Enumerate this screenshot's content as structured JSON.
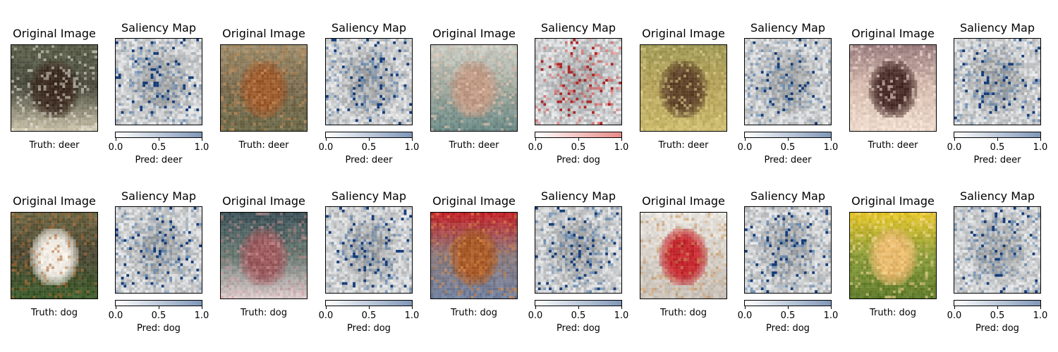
{
  "panels": [
    {
      "row": 0,
      "col": 0,
      "kind": "original",
      "title": "Original Image",
      "caption": "Truth: deer",
      "palette": {
        "base": "#4a4a3c",
        "top": "#5a5f4a",
        "bottom": "#c7c0a8",
        "subject": "#3d2c20",
        "accent": "#e9e4da"
      }
    },
    {
      "row": 0,
      "col": 1,
      "kind": "saliency",
      "title": "Saliency Map",
      "caption": "Pred: deer",
      "cmap": "#4d78a8",
      "colorbar": {
        "ticks": [
          "0.0",
          "0.5",
          "1.0"
        ],
        "end_color": "#7f97b8"
      }
    },
    {
      "row": 0,
      "col": 2,
      "kind": "original",
      "title": "Original Image",
      "caption": "Truth: deer",
      "palette": {
        "base": "#7a6b4e",
        "top": "#9b8b6a",
        "bottom": "#6d6a4a",
        "subject": "#9c5a2c",
        "accent": "#c88c55"
      }
    },
    {
      "row": 0,
      "col": 3,
      "kind": "saliency",
      "title": "Saliency Map",
      "caption": "Pred: deer",
      "cmap": "#4d78a8",
      "colorbar": {
        "ticks": [
          "0.0",
          "0.5",
          "1.0"
        ],
        "end_color": "#7f97b8"
      }
    },
    {
      "row": 0,
      "col": 4,
      "kind": "original",
      "title": "Original Image",
      "caption": "Truth: deer",
      "palette": {
        "base": "#9fa79c",
        "top": "#c9cbc2",
        "bottom": "#6d8a86",
        "subject": "#c09a84",
        "accent": "#e2c0ae"
      }
    },
    {
      "row": 0,
      "col": 5,
      "kind": "saliency",
      "title": "Saliency Map",
      "caption": "Pred: dog",
      "cmap": "#d9534f",
      "colorbar": {
        "ticks": [
          "0.0",
          "0.5",
          "1.0"
        ],
        "end_color": "#e88a86"
      }
    },
    {
      "row": 0,
      "col": 6,
      "kind": "original",
      "title": "Original Image",
      "caption": "Truth: deer",
      "palette": {
        "base": "#b6a35c",
        "top": "#a19a56",
        "bottom": "#c8b86a",
        "subject": "#5e4228",
        "accent": "#e0d08a"
      }
    },
    {
      "row": 0,
      "col": 7,
      "kind": "saliency",
      "title": "Saliency Map",
      "caption": "Pred: deer",
      "cmap": "#4d78a8",
      "colorbar": {
        "ticks": [
          "0.0",
          "0.5",
          "1.0"
        ],
        "end_color": "#7f97b8"
      }
    },
    {
      "row": 0,
      "col": 8,
      "kind": "original",
      "title": "Original Image",
      "caption": "Truth: deer",
      "palette": {
        "base": "#d6bcae",
        "top": "#9c7e80",
        "bottom": "#eedbcd",
        "subject": "#4a2e2a",
        "accent": "#f3e2d6"
      }
    },
    {
      "row": 0,
      "col": 9,
      "kind": "saliency",
      "title": "Saliency Map",
      "caption": "Pred: deer",
      "cmap": "#4d78a8",
      "colorbar": {
        "ticks": [
          "0.0",
          "0.5",
          "1.0"
        ],
        "end_color": "#7f97b8"
      }
    },
    {
      "row": 1,
      "col": 0,
      "kind": "original",
      "title": "Original Image",
      "caption": "Truth: dog",
      "palette": {
        "base": "#4a4632",
        "top": "#6a6442",
        "bottom": "#3c5a2a",
        "subject": "#f1ece4",
        "accent": "#b56b34"
      }
    },
    {
      "row": 1,
      "col": 1,
      "kind": "saliency",
      "title": "Saliency Map",
      "caption": "Pred: dog",
      "cmap": "#4d78a8",
      "colorbar": {
        "ticks": [
          "0.0",
          "0.5",
          "1.0"
        ],
        "end_color": "#7f97b8"
      }
    },
    {
      "row": 1,
      "col": 2,
      "kind": "original",
      "title": "Original Image",
      "caption": "Truth: dog",
      "palette": {
        "base": "#6a7a72",
        "top": "#3e5258",
        "bottom": "#d9c7c8",
        "subject": "#9a5a5e",
        "accent": "#c98e90"
      }
    },
    {
      "row": 1,
      "col": 3,
      "kind": "saliency",
      "title": "Saliency Map",
      "caption": "Pred: dog",
      "cmap": "#4d78a8",
      "colorbar": {
        "ticks": [
          "0.0",
          "0.5",
          "1.0"
        ],
        "end_color": "#7f97b8"
      }
    },
    {
      "row": 1,
      "col": 4,
      "kind": "original",
      "title": "Original Image",
      "caption": "Truth: dog",
      "palette": {
        "base": "#8a7a7c",
        "top": "#c0262a",
        "bottom": "#6f7d9a",
        "subject": "#a85a28",
        "accent": "#d8863e"
      }
    },
    {
      "row": 1,
      "col": 5,
      "kind": "saliency",
      "title": "Saliency Map",
      "caption": "Pred: dog",
      "cmap": "#4d78a8",
      "colorbar": {
        "ticks": [
          "0.0",
          "0.5",
          "1.0"
        ],
        "end_color": "#7f97b8"
      }
    },
    {
      "row": 1,
      "col": 6,
      "kind": "original",
      "title": "Original Image",
      "caption": "Truth: dog",
      "palette": {
        "base": "#d6d0c8",
        "top": "#e6e2dc",
        "bottom": "#c8c0b6",
        "subject": "#c4282e",
        "accent": "#c9955e"
      }
    },
    {
      "row": 1,
      "col": 7,
      "kind": "saliency",
      "title": "Saliency Map",
      "caption": "Pred: dog",
      "cmap": "#4d78a8",
      "colorbar": {
        "ticks": [
          "0.0",
          "0.5",
          "1.0"
        ],
        "end_color": "#7f97b8"
      }
    },
    {
      "row": 1,
      "col": 8,
      "kind": "original",
      "title": "Original Image",
      "caption": "Truth: dog",
      "palette": {
        "base": "#8a9a3a",
        "top": "#e2c42a",
        "bottom": "#5e7a2a",
        "subject": "#e6b86a",
        "accent": "#f4d896"
      }
    },
    {
      "row": 1,
      "col": 9,
      "kind": "saliency",
      "title": "Saliency Map",
      "caption": "Pred: dog",
      "cmap": "#4d78a8",
      "colorbar": {
        "ticks": [
          "0.0",
          "0.5",
          "1.0"
        ],
        "end_color": "#7f97b8"
      }
    }
  ]
}
